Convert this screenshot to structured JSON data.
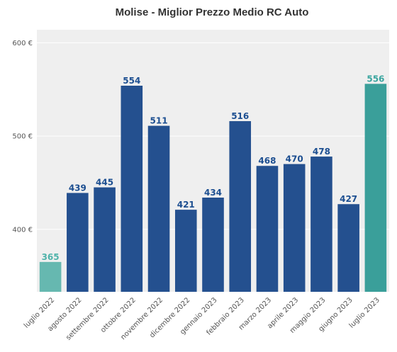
{
  "chart_data": {
    "type": "bar",
    "title": "Molise - Miglior Prezzo Medio RC Auto",
    "xlabel": "",
    "ylabel": "",
    "categories": [
      "luglio 2022",
      "agosto 2022",
      "settembre 2022",
      "ottobre 2022",
      "novembre 2022",
      "dicembre 2022",
      "gennaio 2023",
      "febbraio 2023",
      "marzo 2023",
      "aprile 2023",
      "maggio 2023",
      "giugno 2023",
      "luglio 2023"
    ],
    "values": [
      365,
      439,
      445,
      554,
      511,
      421,
      434,
      516,
      468,
      470,
      478,
      427,
      556
    ],
    "value_labels": [
      "365",
      "439",
      "445",
      "554",
      "511",
      "421",
      "434",
      "516",
      "468",
      "470",
      "478",
      "427",
      "556"
    ],
    "ylim": [
      333,
      614
    ],
    "yticks": [
      400,
      500,
      600
    ],
    "ytick_labels": [
      "400 €",
      "500 €",
      "600 €"
    ],
    "grid": true,
    "legend": "none",
    "colors": {
      "first_bar": "#66b8b0",
      "middle_bars": "#24508f",
      "last_bar": "#3a9f9a",
      "first_label": "#4fb3aa",
      "middle_label": "#1d4f91",
      "last_label": "#3aa59f",
      "plot_background": "#efefef",
      "grid": "#ffffff"
    }
  }
}
